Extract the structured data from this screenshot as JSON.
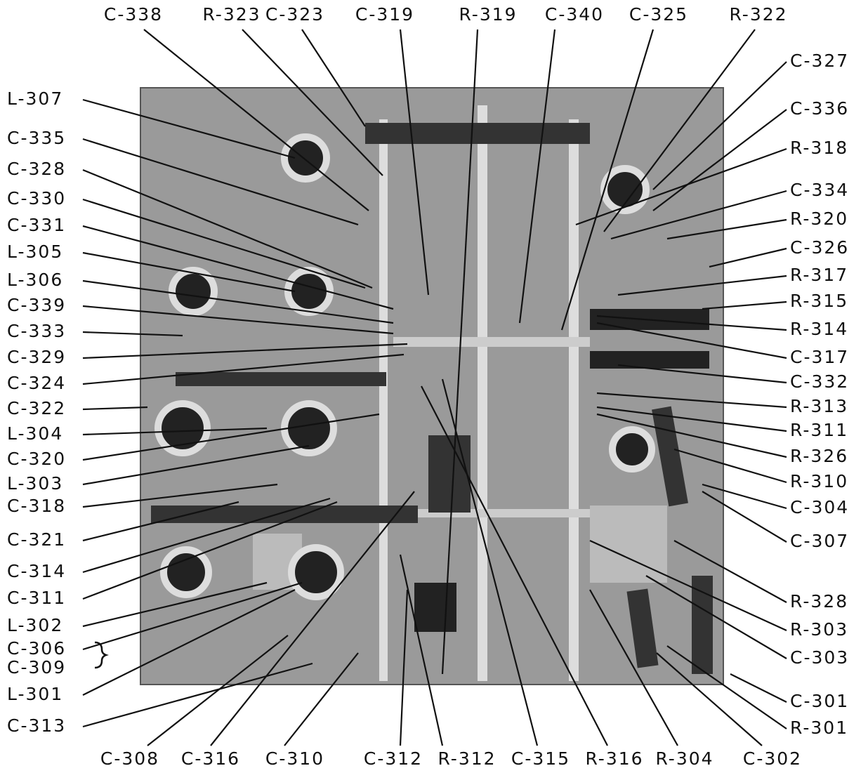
{
  "labels": {
    "top": [
      "C-338",
      "R-323",
      "C-323",
      "C-319",
      "R-319",
      "C-340",
      "C-325",
      "R-322"
    ],
    "left": [
      "L-307",
      "C-335",
      "C-328",
      "C-330",
      "C-331",
      "L-305",
      "L-306",
      "C-339",
      "C-333",
      "C-329",
      "C-324",
      "C-322",
      "L-304",
      "C-320",
      "L-303",
      "C-318",
      "C-321",
      "C-314",
      "C-311",
      "L-302",
      "C-306",
      "C-309",
      "L-301",
      "C-313"
    ],
    "right": [
      "C-327",
      "C-336",
      "R-318",
      "C-334",
      "R-320",
      "C-326",
      "R-317",
      "R-315",
      "R-314",
      "C-317",
      "C-332",
      "R-313",
      "R-311",
      "R-326",
      "R-310",
      "C-304",
      "C-307",
      "R-328",
      "R-303",
      "C-303",
      "C-301",
      "R-301"
    ],
    "bottom": [
      "C-308",
      "C-316",
      "C-310",
      "C-312",
      "R-312",
      "C-315",
      "R-316",
      "R-304",
      "C-302"
    ]
  }
}
